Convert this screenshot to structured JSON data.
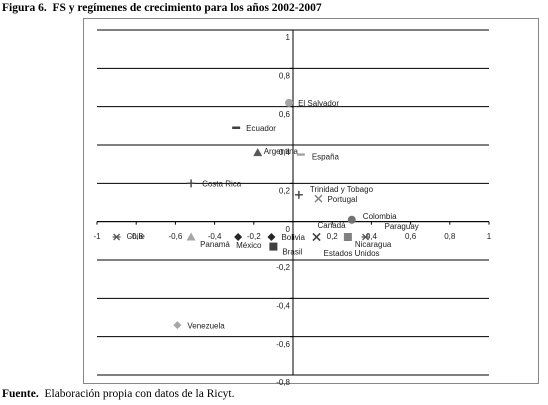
{
  "figure_label": "Figura 6.",
  "chart_data": {
    "type": "scatter",
    "title": "FS y regímenes de crecimiento para los años 2002-2007",
    "xlim": [
      -1,
      1
    ],
    "ylim": [
      -0.8,
      1
    ],
    "xticks": [
      -1,
      {
        "value": -0.8,
        "label": "-0,8"
      },
      {
        "value": -0.6,
        "label": "-0,6"
      },
      {
        "value": -0.4,
        "label": "-0,4"
      },
      {
        "value": -0.2,
        "label": "-0,2"
      },
      {
        "value": 0.2,
        "label": "0,2"
      },
      {
        "value": 0.4,
        "label": "0,4"
      },
      {
        "value": 0.6,
        "label": "0,6"
      },
      {
        "value": 0.8,
        "label": "0,8"
      },
      1
    ],
    "yticks": [
      {
        "value": -0.8,
        "label": "-0,8"
      },
      {
        "value": -0.6,
        "label": "-0,6"
      },
      {
        "value": -0.4,
        "label": "-0,4"
      },
      {
        "value": -0.2,
        "label": "-0,2"
      },
      0,
      {
        "value": 0.2,
        "label": "0,2"
      },
      {
        "value": 0.4,
        "label": "0,4"
      },
      {
        "value": 0.6,
        "label": "0,6"
      },
      {
        "value": 0.8,
        "label": "0,8"
      },
      1
    ],
    "grid": true,
    "series": [
      {
        "name": "El Salvador",
        "marker": "circle",
        "color": "#a6a6a6",
        "x": [
          -0.02
        ],
        "values": [
          0.62
        ]
      },
      {
        "name": "Ecuador",
        "marker": "dash",
        "color": "#404040",
        "x": [
          -0.29
        ],
        "values": [
          0.49
        ]
      },
      {
        "name": "Argentina",
        "marker": "triangle",
        "color": "#595959",
        "x": [
          -0.18
        ],
        "values": [
          0.36
        ]
      },
      {
        "name": "España",
        "marker": "dash",
        "color": "#a6a6a6",
        "x": [
          0.04
        ],
        "values": [
          0.35
        ]
      },
      {
        "name": "Costa Rica",
        "marker": "plus",
        "color": "#404040",
        "x": [
          -0.52
        ],
        "values": [
          0.2
        ]
      },
      {
        "name": "Trinidad y Tobago",
        "marker": "plus",
        "color": "#404040",
        "x": [
          0.03
        ],
        "values": [
          0.14
        ]
      },
      {
        "name": "Portugal",
        "marker": "cross",
        "color": "#808080",
        "x": [
          0.13
        ],
        "values": [
          0.12
        ]
      },
      {
        "name": "Colombia",
        "marker": "circle",
        "color": "#737373",
        "x": [
          0.3
        ],
        "values": [
          0.01
        ]
      },
      {
        "name": "Chile",
        "marker": "asterisk",
        "color": "#595959",
        "x": [
          -0.9
        ],
        "values": [
          -0.08
        ]
      },
      {
        "name": "Panamá",
        "marker": "triangle",
        "color": "#a6a6a6",
        "x": [
          -0.52
        ],
        "values": [
          -0.08
        ]
      },
      {
        "name": "México",
        "marker": "diamond",
        "color": "#262626",
        "x": [
          -0.28
        ],
        "values": [
          -0.08
        ]
      },
      {
        "name": "Bolivia",
        "marker": "diamond",
        "color": "#262626",
        "x": [
          -0.11
        ],
        "values": [
          -0.08
        ]
      },
      {
        "name": "Brasil",
        "marker": "square",
        "color": "#404040",
        "x": [
          -0.1
        ],
        "values": [
          -0.13
        ]
      },
      {
        "name": "Canadá",
        "marker": "cross",
        "color": "#404040",
        "x": [
          0.12
        ],
        "values": [
          -0.08
        ]
      },
      {
        "name": "Estados Unidos",
        "marker": "cross",
        "color": "#404040",
        "x": [
          0.12
        ],
        "values": [
          -0.08
        ]
      },
      {
        "name": "Nicaragua",
        "marker": "square",
        "color": "#808080",
        "x": [
          0.28
        ],
        "values": [
          -0.08
        ]
      },
      {
        "name": "Paraguay",
        "marker": "asterisk",
        "color": "#595959",
        "x": [
          0.37
        ],
        "values": [
          -0.08
        ]
      },
      {
        "name": "Venezuela",
        "marker": "diamond",
        "color": "#a6a6a6",
        "x": [
          -0.59
        ],
        "values": [
          -0.54
        ]
      }
    ]
  },
  "source_label": "Fuente.",
  "source": "Elaboración propia con datos de la Ricyt."
}
